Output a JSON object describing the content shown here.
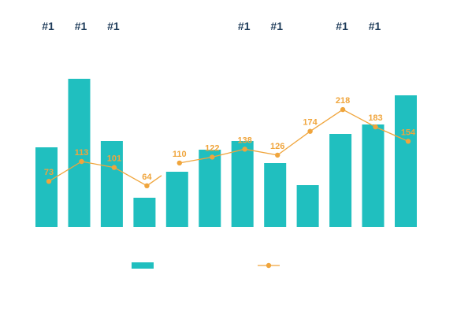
{
  "chart_data": {
    "type": "bar",
    "categories": [
      "",
      "",
      "",
      "",
      "",
      "",
      "",
      "",
      "",
      "",
      "",
      ""
    ],
    "series": [
      {
        "type": "bar",
        "values": [
          101,
          188,
          109,
          37,
          70,
          98,
          109,
          81,
          53,
          118,
          130,
          167
        ]
      },
      {
        "type": "line",
        "values": [
          73,
          113,
          101,
          64,
          110,
          122,
          138,
          126,
          174,
          218,
          183,
          154
        ],
        "labels": [
          "73",
          "113",
          "101",
          "64",
          "110",
          "122",
          "138",
          "126",
          "174",
          "218",
          "183",
          "154"
        ]
      }
    ],
    "rank_labels": [
      "#1",
      "#1",
      "#1",
      "",
      "",
      "",
      "#1",
      "#1",
      "",
      "#1",
      "#1",
      ""
    ],
    "ylim": [
      0,
      200
    ],
    "grid": false,
    "legend": "bottom-center",
    "colors": {
      "bar": "#20bfbf",
      "line": "#f0a53c",
      "line_label": "#f0a53c",
      "rank_label": "#1f3c5a"
    }
  }
}
